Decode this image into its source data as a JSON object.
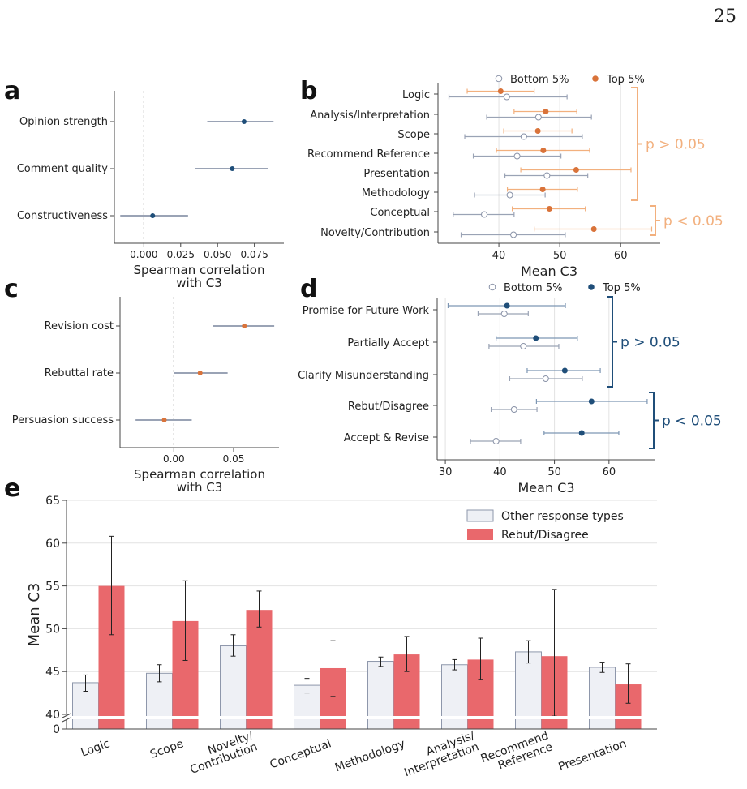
{
  "page_number": "25",
  "colors": {
    "navy": "#1f4e79",
    "orange": "#d9733a",
    "peach": "#f2b07e",
    "grey_ci": "#9aa3b5",
    "red_bar": "#e9686c",
    "light_bar": "#eef0f5",
    "axis": "#444444"
  },
  "panel_labels": {
    "a": "a",
    "b": "b",
    "c": "c",
    "d": "d",
    "e": "e"
  },
  "chart_data": [
    {
      "panel": "a",
      "type": "scatter",
      "categories": [
        "Opinion strength",
        "Comment quality",
        "Constructiveness"
      ],
      "values": [
        0.068,
        0.06,
        0.006
      ],
      "ci": [
        [
          0.043,
          0.088
        ],
        [
          0.035,
          0.084
        ],
        [
          -0.016,
          0.03
        ]
      ],
      "xlabel": "Spearman correlation\nwith C3",
      "xticks": [
        "0.000",
        "0.025",
        "0.050",
        "0.075"
      ],
      "xlim": [
        -0.02,
        0.095
      ]
    },
    {
      "panel": "b",
      "type": "scatter",
      "categories": [
        "Logic",
        "Analysis/Interpretation",
        "Scope",
        "Recommend Reference",
        "Presentation",
        "Methodology",
        "Conceptual",
        "Novelty/Contribution"
      ],
      "series": [
        {
          "name": "Bottom 5%",
          "values": [
            41.3,
            46.5,
            44.1,
            43.0,
            47.9,
            41.8,
            37.6,
            42.4
          ],
          "ci": [
            [
              31.8,
              51.2
            ],
            [
              38.0,
              55.2
            ],
            [
              34.4,
              53.7
            ],
            [
              35.8,
              50.2
            ],
            [
              41.0,
              54.6
            ],
            [
              36.0,
              47.6
            ],
            [
              32.5,
              42.5
            ],
            [
              33.8,
              50.9
            ]
          ]
        },
        {
          "name": "Top 5%",
          "values": [
            40.3,
            47.7,
            46.4,
            47.3,
            52.7,
            47.2,
            48.3,
            55.6
          ],
          "ci": [
            [
              34.8,
              45.8
            ],
            [
              42.5,
              52.8
            ],
            [
              40.8,
              52.0
            ],
            [
              39.6,
              54.9
            ],
            [
              43.6,
              61.7
            ],
            [
              41.4,
              52.9
            ],
            [
              42.2,
              54.2
            ],
            [
              45.8,
              65.1
            ]
          ]
        }
      ],
      "brackets": [
        "p > 0.05",
        "p < 0.05"
      ],
      "xlabel": "Mean C3",
      "xticks": [
        "40",
        "50",
        "60"
      ],
      "xlim": [
        30,
        66.5
      ]
    },
    {
      "panel": "c",
      "type": "scatter",
      "categories": [
        "Revision cost",
        "Rebuttal rate",
        "Persuasion success"
      ],
      "values": [
        0.059,
        0.022,
        -0.008
      ],
      "ci": [
        [
          0.033,
          0.084
        ],
        [
          0.0,
          0.045
        ],
        [
          -0.032,
          0.015
        ]
      ],
      "xlabel": "Spearman correlation\nwith C3",
      "xticks": [
        "0.00",
        "0.05"
      ],
      "xlim": [
        -0.045,
        0.088
      ]
    },
    {
      "panel": "d",
      "type": "scatter",
      "categories": [
        "Promise for Future Work",
        "Partially Accept",
        "Clarify Misunderstanding",
        "Rebut/Disagree",
        "Accept & Revise"
      ],
      "series": [
        {
          "name": "Bottom 5%",
          "values": [
            40.8,
            44.3,
            48.4,
            42.6,
            39.3
          ],
          "ci": [
            [
              36.0,
              45.2
            ],
            [
              38.0,
              50.8
            ],
            [
              41.8,
              55.1
            ],
            [
              38.4,
              46.8
            ],
            [
              34.6,
              43.8
            ]
          ]
        },
        {
          "name": "Top 5%",
          "values": [
            41.3,
            46.6,
            51.9,
            56.8,
            55.0
          ],
          "ci": [
            [
              30.5,
              52.0
            ],
            [
              39.3,
              54.2
            ],
            [
              45.0,
              58.4
            ],
            [
              46.7,
              67.0
            ],
            [
              48.1,
              61.8
            ]
          ]
        }
      ],
      "brackets": [
        "p > 0.05",
        "p < 0.05"
      ],
      "xlabel": "Mean C3",
      "xticks": [
        "30",
        "40",
        "50",
        "60"
      ],
      "xlim": [
        28.5,
        68.5
      ]
    },
    {
      "panel": "e",
      "type": "bar",
      "categories": [
        "Logic",
        "Scope",
        "Novelty/\nContribution",
        "Conceptual",
        "Methodology",
        "Analysis/\nInterpretation",
        "Recommend\nReference",
        "Presentation"
      ],
      "series": [
        {
          "name": "Other response types",
          "values": [
            43.7,
            44.8,
            48.0,
            43.4,
            46.2,
            45.8,
            47.3,
            45.5
          ],
          "err": [
            [
              42.7,
              44.6
            ],
            [
              43.8,
              45.8
            ],
            [
              46.8,
              49.3
            ],
            [
              42.5,
              44.2
            ],
            [
              45.6,
              46.7
            ],
            [
              45.2,
              46.4
            ],
            [
              46.0,
              48.6
            ],
            [
              44.9,
              46.1
            ]
          ]
        },
        {
          "name": "Rebut/Disagree",
          "values": [
            55.0,
            50.9,
            52.2,
            45.4,
            47.0,
            46.4,
            46.8,
            43.5
          ],
          "err": [
            [
              49.3,
              60.8
            ],
            [
              46.3,
              55.6
            ],
            [
              50.2,
              54.4
            ],
            [
              42.1,
              48.6
            ],
            [
              45.0,
              49.1
            ],
            [
              44.1,
              48.9
            ],
            [
              39.8,
              54.6
            ],
            [
              41.3,
              45.9
            ]
          ]
        }
      ],
      "ylabel": "Mean C3",
      "yticks": [
        "0",
        "40",
        "45",
        "50",
        "55",
        "60",
        "65"
      ],
      "ylim": [
        39.5,
        65
      ],
      "axis_break": true
    }
  ]
}
